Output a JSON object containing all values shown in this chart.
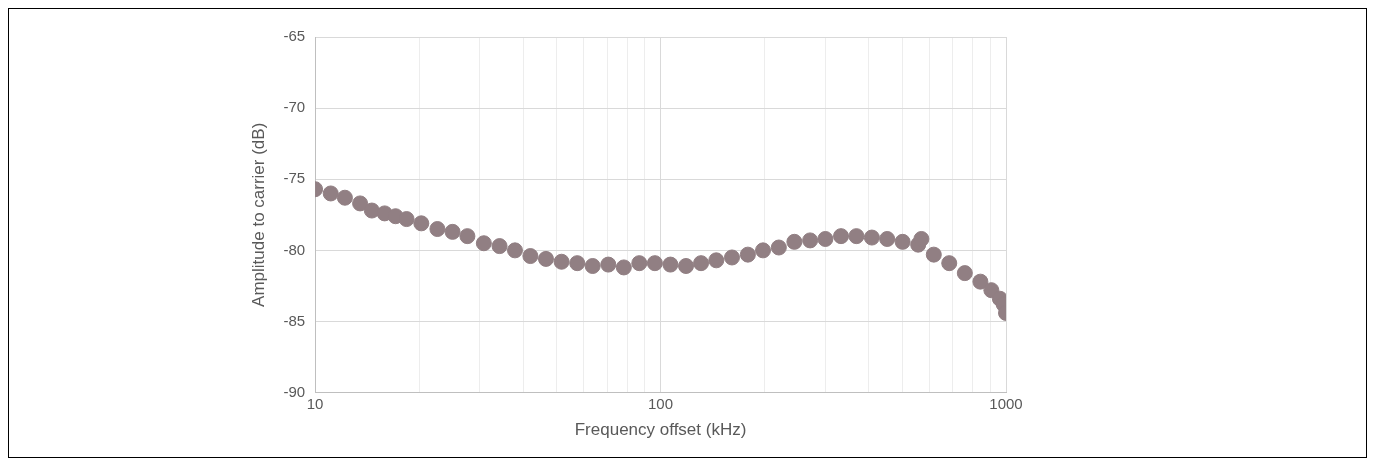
{
  "chart_data": {
    "type": "scatter",
    "xlabel": "Frequency offset (kHz)",
    "ylabel": "Amplitude to carrier (dB)",
    "log": "x",
    "grid": true,
    "marker": "circle",
    "legend": false,
    "xlim": [
      10,
      1000
    ],
    "xticks": [
      10,
      {
        "value": 20,
        "label": null
      },
      {
        "value": 30,
        "label": null
      },
      {
        "value": 40,
        "label": null
      },
      {
        "value": 50,
        "label": null
      },
      {
        "value": 60,
        "label": null
      },
      {
        "value": 70,
        "label": null
      },
      {
        "value": 80,
        "label": null
      },
      {
        "value": 90,
        "label": null
      },
      100,
      {
        "value": 200,
        "label": null
      },
      {
        "value": 300,
        "label": null
      },
      {
        "value": 400,
        "label": null
      },
      {
        "value": 500,
        "label": null
      },
      {
        "value": 600,
        "label": null
      },
      {
        "value": 700,
        "label": null
      },
      {
        "value": 800,
        "label": null
      },
      {
        "value": 900,
        "label": null
      },
      1000
    ],
    "ylim": [
      -90,
      -65
    ],
    "yticks": [
      -90,
      -85,
      -80,
      -75,
      -70,
      -65
    ],
    "series": [
      {
        "color": "#917f83",
        "x": [
          10,
          11.1,
          12.2,
          13.5,
          14.6,
          15.9,
          17.1,
          18.4,
          20.3,
          22.6,
          25,
          27.6,
          30.8,
          34.2,
          37.9,
          42,
          46.6,
          51.7,
          57.4,
          63.6,
          70.6,
          78.3,
          86.8,
          96.3,
          106.8,
          118.5,
          131,
          145,
          161,
          179,
          198,
          220,
          244,
          271,
          300,
          333,
          369,
          409,
          453,
          502,
          557,
          569,
          618,
          685,
          760,
          843,
          907,
          960,
          985,
          1000
        ],
        "values": [
          -75.7,
          -76,
          -76.3,
          -76.7,
          -77.2,
          -77.4,
          -77.6,
          -77.8,
          -78.1,
          -78.5,
          -78.7,
          -79,
          -79.5,
          -79.7,
          -80,
          -80.4,
          -80.6,
          -80.8,
          -80.9,
          -81.1,
          -81,
          -81.2,
          -80.9,
          -80.9,
          -81,
          -81.1,
          -80.9,
          -80.7,
          -80.5,
          -80.3,
          -80,
          -79.8,
          -79.4,
          -79.3,
          -79.2,
          -79,
          -79,
          -79.1,
          -79.2,
          -79.4,
          -79.6,
          -79.2,
          -80.3,
          -80.9,
          -81.6,
          -82.2,
          -82.8,
          -83.4,
          -83.8,
          -84.4
        ]
      }
    ]
  }
}
